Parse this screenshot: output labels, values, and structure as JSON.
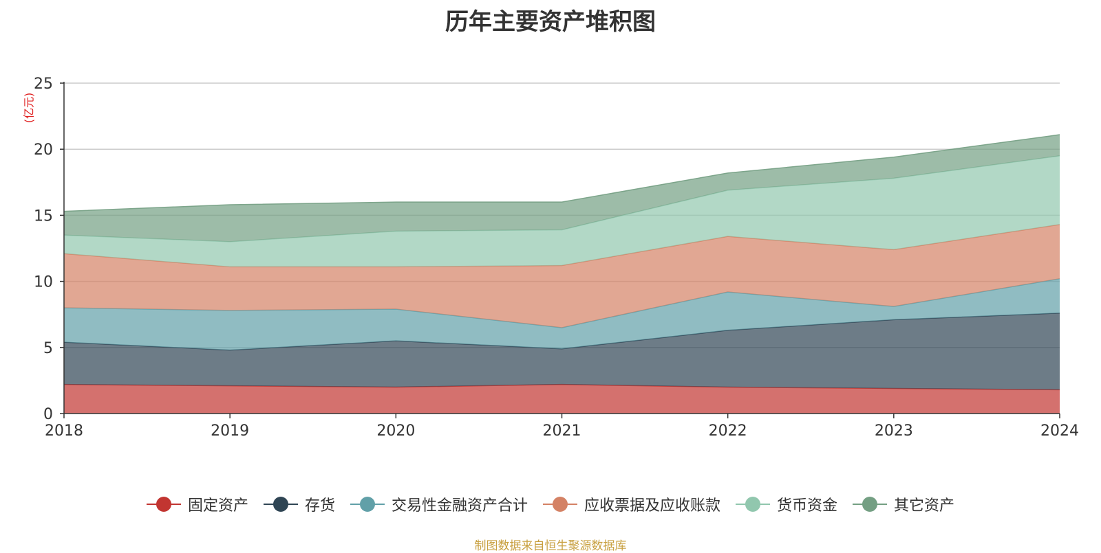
{
  "title": "历年主要资产堆积图",
  "unit_label": "(亿元)",
  "source_text": "制图数据来自恒生聚源数据库",
  "chart_data": {
    "type": "area",
    "stacked": true,
    "title": "历年主要资产堆积图",
    "ylabel": "(亿元)",
    "xlabel": "",
    "x": [
      "2018",
      "2019",
      "2020",
      "2021",
      "2022",
      "2023",
      "2024"
    ],
    "ylim": [
      0,
      25
    ],
    "yticks": [
      0,
      5,
      10,
      15,
      20,
      25
    ],
    "grid": true,
    "legend_position": "bottom",
    "series": [
      {
        "name": "固定资产",
        "color": "#c23531",
        "values": [
          2.2,
          2.1,
          2.0,
          2.2,
          2.0,
          1.9,
          1.8
        ]
      },
      {
        "name": "存货",
        "color": "#2f4554",
        "values": [
          3.2,
          2.7,
          3.5,
          2.7,
          4.3,
          5.2,
          5.8
        ]
      },
      {
        "name": "交易性金融资产合计",
        "color": "#61a0a8",
        "values": [
          2.6,
          3.0,
          2.4,
          1.6,
          2.9,
          1.0,
          2.6
        ]
      },
      {
        "name": "应收票据及应收账款",
        "color": "#d48265",
        "values": [
          4.1,
          3.3,
          3.2,
          4.7,
          4.2,
          4.3,
          4.1
        ]
      },
      {
        "name": "货币资金",
        "color": "#91c7ae",
        "values": [
          1.4,
          1.9,
          2.7,
          2.7,
          3.5,
          5.4,
          5.2
        ]
      },
      {
        "name": "其它资产",
        "color": "#749f83",
        "values": [
          1.8,
          2.8,
          2.2,
          2.1,
          1.3,
          1.6,
          1.6
        ]
      }
    ]
  }
}
